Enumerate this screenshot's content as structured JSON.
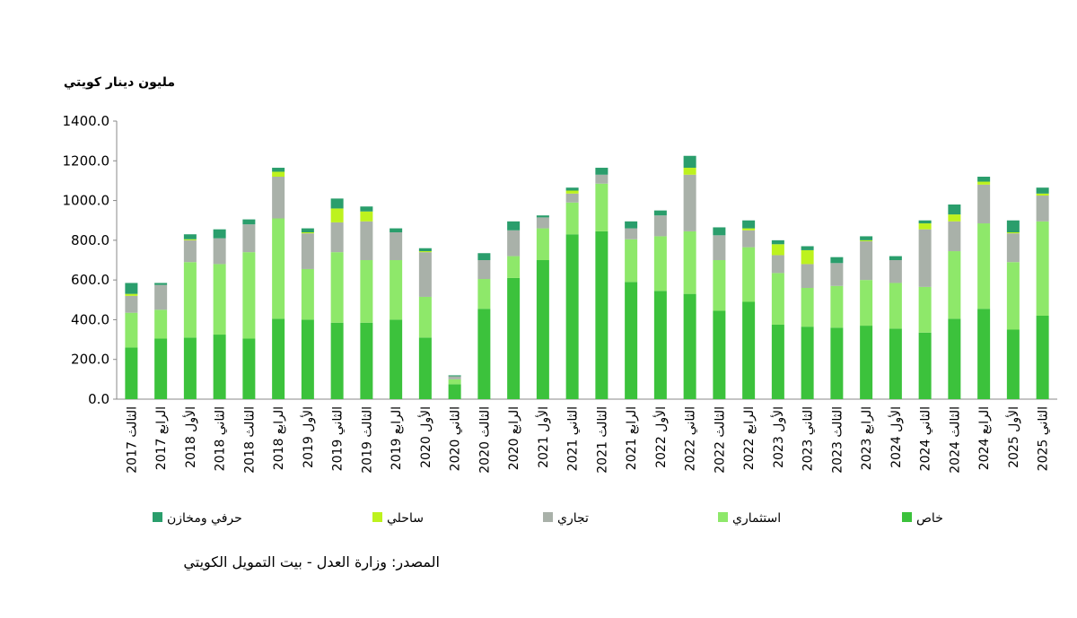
{
  "chart_data": {
    "type": "stacked-bar",
    "y_axis_title": "مليون دينار كويتي",
    "source": "المصدر: وزارة العدل - بيت التمويل الكويتي",
    "categories": [
      "الثالث 2017",
      "الرابع 2017",
      "الأول 2018",
      "الثاني 2018",
      "الثالث 2018",
      "الرابع 2018",
      "الأول 2019",
      "الثاني 2019",
      "الثالث 2019",
      "الرابع 2019",
      "الأول 2020",
      "الثاني 2020",
      "الثالث 2020",
      "الرابع 2020",
      "الأول 2021",
      "الثاني 2021",
      "الثالث 2021",
      "الرابع 2021",
      "الأول 2022",
      "الثاني 2022",
      "الثالث 2022",
      "الرابع 2022",
      "الأول 2023",
      "الثاني 2023",
      "الثالث 2023",
      "الرابع 2023",
      "الأول 2024",
      "الثاني 2024",
      "الثالث 2024",
      "الرابع 2024",
      "الأول 2025",
      "الثاني 2025"
    ],
    "series": [
      {
        "name": "خاص",
        "color": "#3cc23c",
        "values": [
          260,
          305,
          310,
          325,
          305,
          405,
          400,
          385,
          385,
          400,
          310,
          75,
          455,
          610,
          700,
          830,
          845,
          590,
          545,
          530,
          445,
          490,
          375,
          365,
          360,
          370,
          355,
          335,
          405,
          455,
          350,
          420
        ]
      },
      {
        "name": "استثماري",
        "color": "#8ee86a",
        "values": [
          175,
          145,
          380,
          355,
          435,
          505,
          255,
          355,
          315,
          300,
          205,
          25,
          150,
          110,
          160,
          160,
          240,
          215,
          275,
          315,
          255,
          275,
          260,
          195,
          210,
          230,
          230,
          230,
          340,
          430,
          340,
          475
        ]
      },
      {
        "name": "تجاري",
        "color": "#a9b1a9",
        "values": [
          85,
          125,
          110,
          130,
          140,
          210,
          180,
          150,
          195,
          140,
          225,
          15,
          95,
          130,
          55,
          45,
          45,
          55,
          105,
          285,
          125,
          85,
          90,
          120,
          115,
          195,
          115,
          290,
          150,
          195,
          145,
          130
        ]
      },
      {
        "name": "ساحلي",
        "color": "#bdf21e",
        "values": [
          10,
          0,
          5,
          0,
          0,
          25,
          5,
          70,
          50,
          0,
          5,
          0,
          0,
          0,
          0,
          15,
          0,
          0,
          0,
          35,
          0,
          10,
          55,
          70,
          0,
          5,
          0,
          30,
          35,
          15,
          5,
          10
        ]
      },
      {
        "name": "حرفي ومخازن",
        "color": "#2a9e6c",
        "values": [
          55,
          10,
          25,
          45,
          25,
          20,
          20,
          50,
          25,
          20,
          15,
          5,
          35,
          45,
          10,
          15,
          35,
          35,
          25,
          60,
          40,
          40,
          20,
          20,
          30,
          20,
          20,
          15,
          50,
          25,
          60,
          30
        ]
      }
    ],
    "ylim": [
      0,
      1400
    ],
    "yticks": [
      {
        "value": 0,
        "label": "0.0"
      },
      {
        "value": 200,
        "label": "200.0"
      },
      {
        "value": 400,
        "label": "400.0"
      },
      {
        "value": 600,
        "label": "600.0"
      },
      {
        "value": 800,
        "label": "800.0"
      },
      {
        "value": 1000,
        "label": "1000.0"
      },
      {
        "value": 1200,
        "label": "1200.0"
      },
      {
        "value": 1400,
        "label": "1400.0"
      }
    ]
  }
}
